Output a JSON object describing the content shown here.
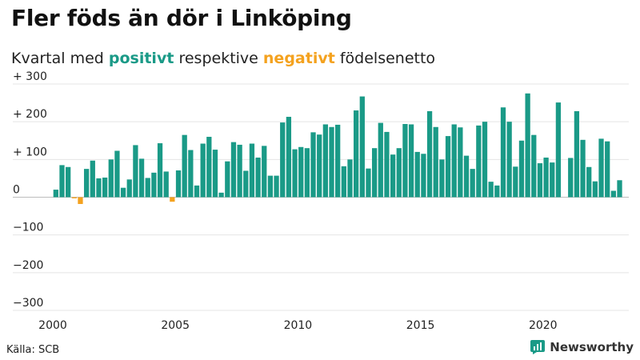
{
  "header": {
    "title": "Fler föds än dör i Linköping",
    "subtitle_pre": "Kvartal med ",
    "subtitle_pos": "positivt",
    "subtitle_mid": " respektive ",
    "subtitle_neg": "negativt",
    "subtitle_post": " födelsenetto"
  },
  "footer": {
    "source": "Källa: SCB",
    "brand": "Newsworthy"
  },
  "colors": {
    "positive": "#1a9a87",
    "negative": "#f4a21f"
  },
  "chart_data": {
    "type": "bar",
    "title": "Fler föds än dör i Linköping",
    "subtitle": "Kvartal med positivt respektive negativt födelsenetto",
    "xlabel": "",
    "ylabel": "",
    "ylim": [
      -300,
      300
    ],
    "yticks": [
      300,
      200,
      100,
      0,
      -100,
      -200,
      -300
    ],
    "ytick_labels": [
      "+ 300",
      "+ 200",
      "+ 100",
      "0",
      "−100",
      "−200",
      "−300"
    ],
    "xlim": [
      2000,
      2023.5
    ],
    "xticks": [
      2000,
      2005,
      2010,
      2015,
      2020
    ],
    "xtick_labels": [
      "2000",
      "2005",
      "2010",
      "2015",
      "2020"
    ],
    "grid": true,
    "legend": "none",
    "start": "2000 Q1",
    "frequency": "quarter",
    "values": [
      20,
      85,
      80,
      -3,
      -18,
      75,
      97,
      50,
      52,
      100,
      123,
      25,
      47,
      138,
      102,
      51,
      65,
      143,
      68,
      -12,
      71,
      165,
      125,
      31,
      142,
      160,
      126,
      12,
      95,
      146,
      139,
      70,
      142,
      105,
      136,
      57,
      57,
      198,
      213,
      127,
      133,
      130,
      172,
      166,
      193,
      186,
      192,
      82,
      100,
      230,
      267,
      76,
      130,
      197,
      173,
      113,
      130,
      194,
      193,
      120,
      115,
      228,
      186,
      100,
      162,
      193,
      185,
      110,
      75,
      190,
      200,
      41,
      31,
      238,
      200,
      81,
      150,
      275,
      165,
      90,
      105,
      92,
      251,
      0,
      104,
      228,
      152,
      80,
      42,
      155,
      148,
      17,
      45
    ]
  }
}
